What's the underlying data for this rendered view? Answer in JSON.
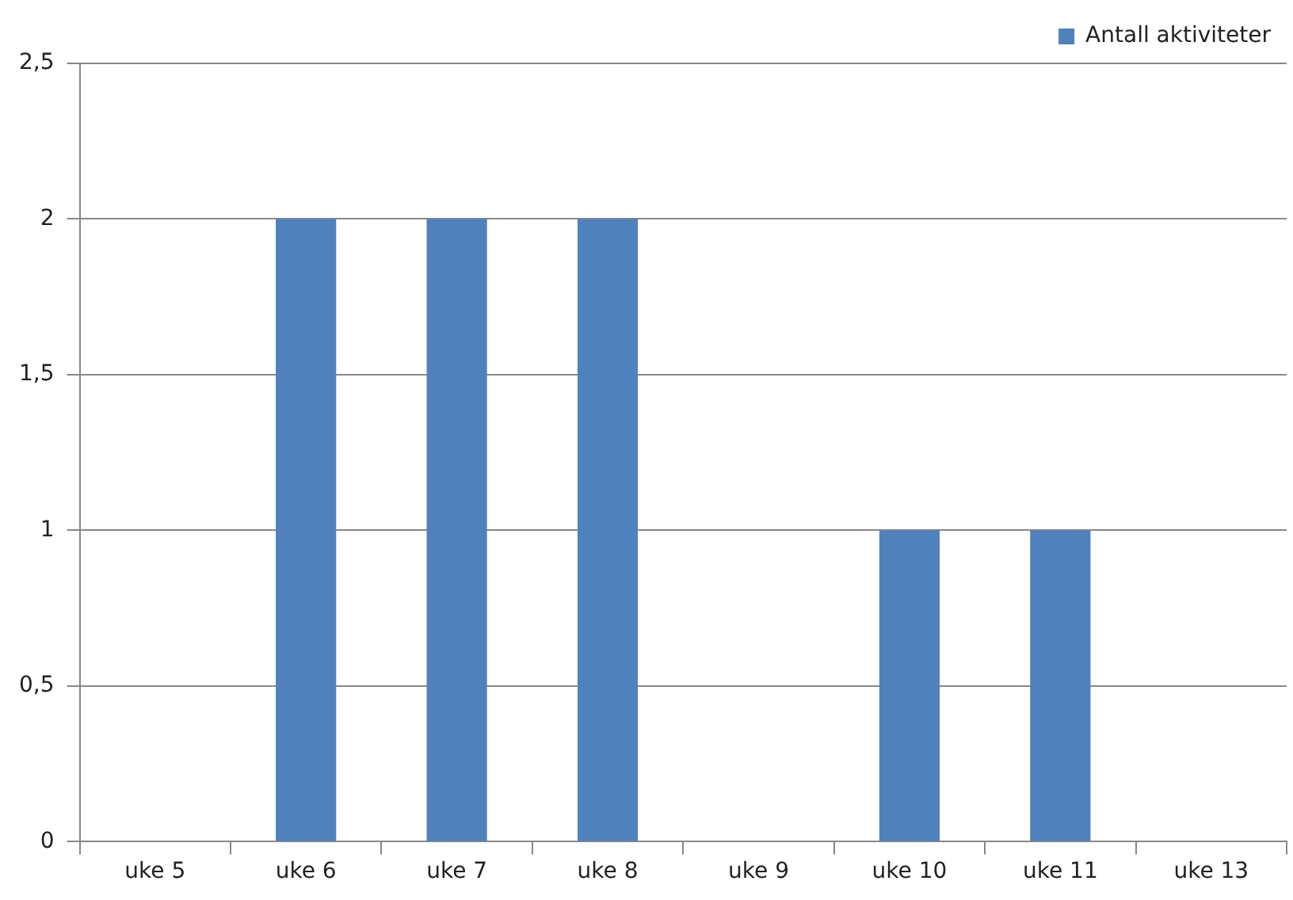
{
  "chart_data": {
    "type": "bar",
    "categories": [
      "uke 5",
      "uke 6",
      "uke 7",
      "uke 8",
      "uke 9",
      "uke 10",
      "uke 11",
      "uke 13"
    ],
    "series": [
      {
        "name": "Antall aktiviteter",
        "color": "#4f81bd",
        "values": [
          0,
          2,
          2,
          2,
          0,
          1,
          1,
          0
        ]
      }
    ],
    "ylim": [
      0,
      2.5
    ],
    "yticks": [
      0,
      {
        "value": 0.5,
        "label": "0,5"
      },
      1,
      {
        "value": 1.5,
        "label": "1,5"
      },
      2,
      {
        "value": 2.5,
        "label": "2,5"
      }
    ],
    "grid": "y",
    "legend": "top right"
  }
}
